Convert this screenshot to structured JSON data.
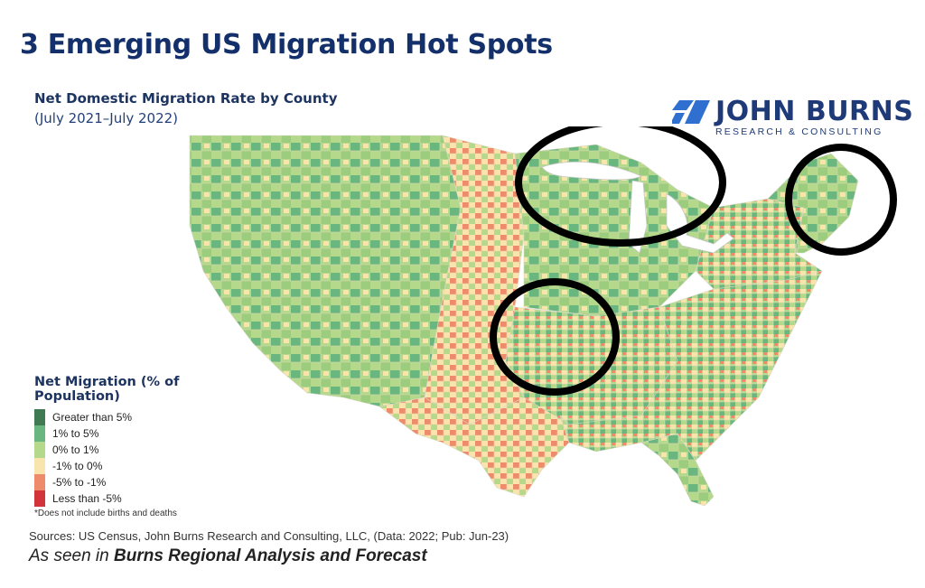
{
  "title": "3 Emerging US Migration Hot Spots",
  "subtitle": "Net Domestic Migration Rate by County",
  "period": "(July 2021–July 2022)",
  "logo": {
    "name": "JOHN BURNS",
    "tagline": "RESEARCH & CONSULTING",
    "accent": "#2f6fd0",
    "brand": "#1e3a78"
  },
  "legend": {
    "title": "Net Migration (% of Population)",
    "items": [
      {
        "label": "Greater than 5%",
        "color": "#3f7a52"
      },
      {
        "label": "1% to 5%",
        "color": "#69b77e"
      },
      {
        "label": "0% to 1%",
        "color": "#b5d98b"
      },
      {
        "label": "-1% to 0%",
        "color": "#f9e4ae"
      },
      {
        "label": "-5% to -1%",
        "color": "#ee8b6b"
      },
      {
        "label": "Less than -5%",
        "color": "#d2343b"
      }
    ],
    "note": "*Does not include births and deaths"
  },
  "highlights": [
    {
      "region": "Upper Midwest / Great Lakes"
    },
    {
      "region": "Northern New England"
    },
    {
      "region": "Missouri / Ozarks"
    }
  ],
  "sources": "Sources: US Census, John Burns Research and Consulting, LLC, (Data: 2022; Pub: Jun-23)",
  "seen_prefix": "As seen in ",
  "seen_title": "Burns Regional Analysis and Forecast"
}
